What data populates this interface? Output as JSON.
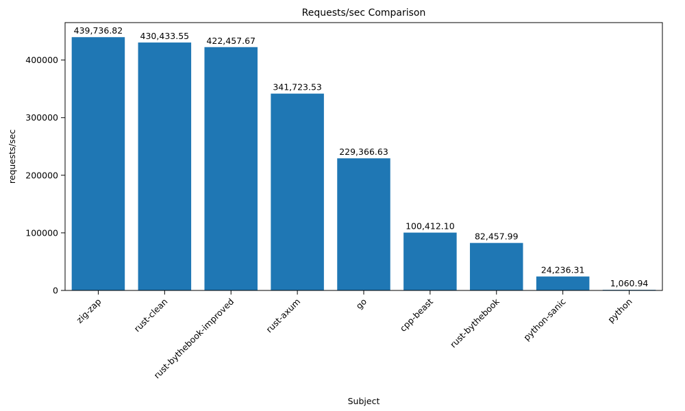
{
  "chart_data": {
    "type": "bar",
    "title": "Requests/sec Comparison",
    "xlabel": "Subject",
    "ylabel": "requests/sec",
    "categories": [
      "zig-zap",
      "rust-clean",
      "rust-bythebook-improved",
      "rust-axum",
      "go",
      "cpp-beast",
      "rust-bythebook",
      "python-sanic",
      "python"
    ],
    "values": [
      439736.82,
      430433.55,
      422457.67,
      341723.53,
      229366.63,
      100412.1,
      82457.99,
      24236.31,
      1060.94
    ],
    "value_labels": [
      "439,736.82",
      "430,433.55",
      "422,457.67",
      "341,723.53",
      "229,366.63",
      "100,412.10",
      "82,457.99",
      "24,236.31",
      "1,060.94"
    ],
    "yticks": [
      0,
      100000,
      200000,
      300000,
      400000
    ],
    "ylim": [
      0,
      465000
    ],
    "bar_color": "#1f77b4",
    "grid": "off",
    "legend": "none",
    "x_tick_rotation": 45
  }
}
